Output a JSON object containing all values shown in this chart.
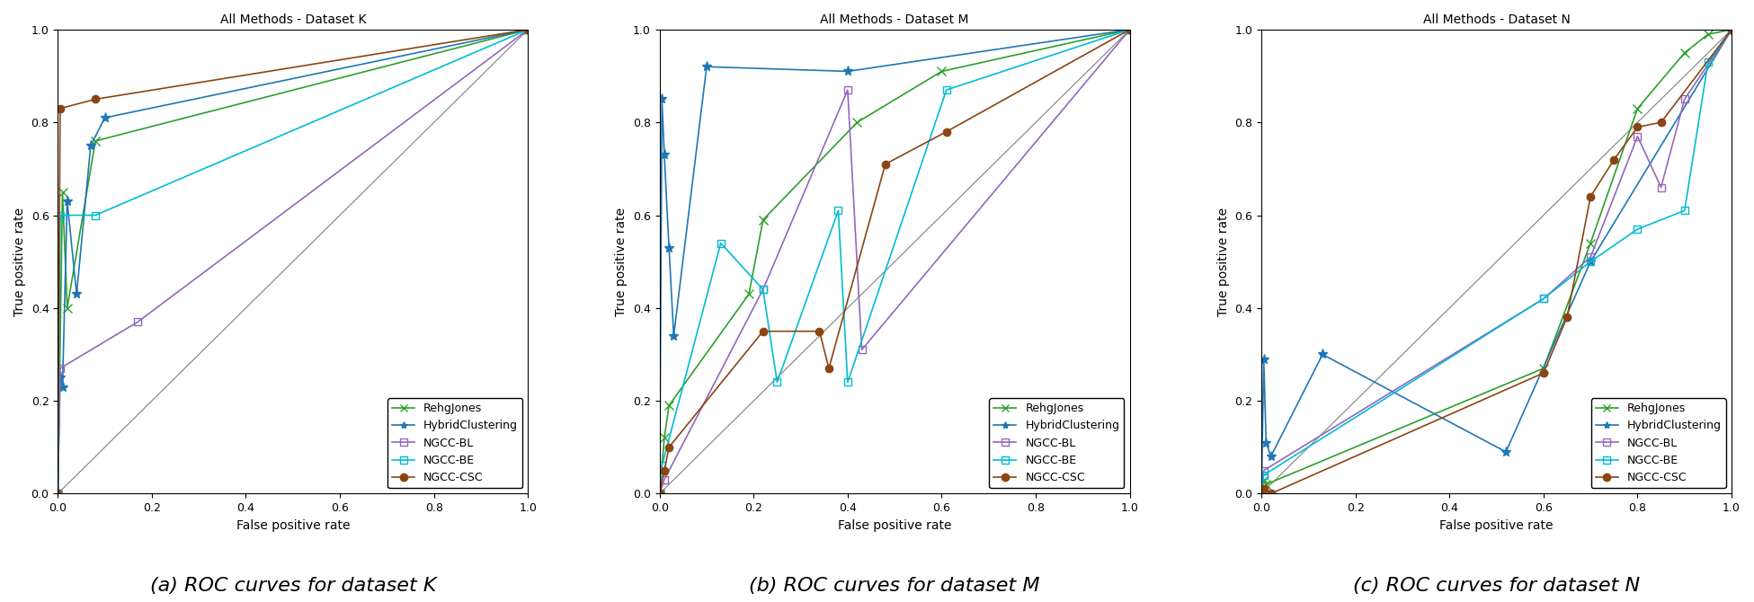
{
  "charts": [
    {
      "title": "All Methods - Dataset K",
      "xlabel": "False positive rate",
      "ylabel": "True positive rate",
      "caption": "(a) ROC curves for dataset K",
      "series": {
        "RehgJones": {
          "x": [
            0.0,
            0.01,
            0.02,
            0.08,
            1.0
          ],
          "y": [
            0.0,
            0.65,
            0.4,
            0.76,
            1.0
          ],
          "color": "#2ca02c",
          "marker": "x"
        },
        "HybridClustering": {
          "x": [
            0.0,
            0.005,
            0.01,
            0.02,
            0.04,
            0.07,
            0.1,
            1.0
          ],
          "y": [
            0.0,
            0.25,
            0.23,
            0.63,
            0.43,
            0.75,
            0.81,
            1.0
          ],
          "color": "#1f77b4",
          "marker": "*"
        },
        "NGCC-BL": {
          "x": [
            0.0,
            0.005,
            0.17,
            1.0
          ],
          "y": [
            0.0,
            0.27,
            0.37,
            1.0
          ],
          "color": "#9467bd",
          "marker": "s"
        },
        "NGCC-BE": {
          "x": [
            0.0,
            0.005,
            0.08,
            1.0
          ],
          "y": [
            0.0,
            0.6,
            0.6,
            1.0
          ],
          "color": "#00bcd4",
          "marker": "s"
        },
        "NGCC-CSC": {
          "x": [
            0.0,
            0.005,
            0.08,
            1.0
          ],
          "y": [
            0.0,
            0.83,
            0.85,
            1.0
          ],
          "color": "#8B4513",
          "marker": "o"
        }
      }
    },
    {
      "title": "All Methods - Dataset M",
      "xlabel": "False positive rate",
      "ylabel": "True positive rate",
      "caption": "(b) ROC curves for dataset M",
      "series": {
        "RehgJones": {
          "x": [
            0.0,
            0.01,
            0.02,
            0.19,
            0.22,
            0.42,
            0.6,
            1.0
          ],
          "y": [
            0.0,
            0.12,
            0.19,
            0.43,
            0.59,
            0.8,
            0.91,
            1.0
          ],
          "color": "#2ca02c",
          "marker": "x"
        },
        "HybridClustering": {
          "x": [
            0.0,
            0.005,
            0.01,
            0.02,
            0.03,
            0.1,
            0.4,
            1.0
          ],
          "y": [
            0.0,
            0.85,
            0.73,
            0.53,
            0.34,
            0.92,
            0.91,
            1.0
          ],
          "color": "#1f77b4",
          "marker": "*"
        },
        "NGCC-BL": {
          "x": [
            0.0,
            0.01,
            0.22,
            0.4,
            0.43,
            1.0
          ],
          "y": [
            0.0,
            0.03,
            0.44,
            0.87,
            0.31,
            1.0
          ],
          "color": "#9467bd",
          "marker": "s"
        },
        "NGCC-BE": {
          "x": [
            0.0,
            0.005,
            0.13,
            0.22,
            0.25,
            0.38,
            0.4,
            0.61,
            1.0
          ],
          "y": [
            0.0,
            0.06,
            0.54,
            0.44,
            0.24,
            0.61,
            0.24,
            0.87,
            1.0
          ],
          "color": "#00bcd4",
          "marker": "s"
        },
        "NGCC-CSC": {
          "x": [
            0.0,
            0.01,
            0.02,
            0.22,
            0.34,
            0.36,
            0.48,
            0.61,
            1.0
          ],
          "y": [
            0.0,
            0.05,
            0.1,
            0.35,
            0.35,
            0.27,
            0.71,
            0.78,
            1.0
          ],
          "color": "#8B4513",
          "marker": "o"
        }
      }
    },
    {
      "title": "All Methods - Dataset N",
      "xlabel": "False positive rate",
      "ylabel": "True positive rate",
      "caption": "(c) ROC curves for dataset N",
      "series": {
        "RehgJones": {
          "x": [
            0.0,
            0.005,
            0.01,
            0.6,
            0.7,
            0.8,
            0.9,
            0.95,
            1.0
          ],
          "y": [
            0.0,
            0.03,
            0.02,
            0.27,
            0.54,
            0.83,
            0.95,
            0.99,
            1.0
          ],
          "color": "#2ca02c",
          "marker": "x"
        },
        "HybridClustering": {
          "x": [
            0.0,
            0.005,
            0.01,
            0.02,
            0.13,
            0.52,
            0.7,
            1.0
          ],
          "y": [
            0.0,
            0.29,
            0.11,
            0.08,
            0.3,
            0.09,
            0.5,
            1.0
          ],
          "color": "#1f77b4",
          "marker": "*"
        },
        "NGCC-BL": {
          "x": [
            0.0,
            0.005,
            0.6,
            0.7,
            0.8,
            0.85,
            0.9,
            1.0
          ],
          "y": [
            0.0,
            0.05,
            0.42,
            0.51,
            0.77,
            0.66,
            0.85,
            1.0
          ],
          "color": "#9467bd",
          "marker": "s"
        },
        "NGCC-BE": {
          "x": [
            0.0,
            0.005,
            0.6,
            0.7,
            0.8,
            0.9,
            0.95,
            1.0
          ],
          "y": [
            0.0,
            0.04,
            0.42,
            0.5,
            0.57,
            0.61,
            0.93,
            1.0
          ],
          "color": "#00bcd4",
          "marker": "s"
        },
        "NGCC-CSC": {
          "x": [
            0.0,
            0.005,
            0.02,
            0.6,
            0.65,
            0.7,
            0.75,
            0.8,
            0.85,
            1.0
          ],
          "y": [
            0.0,
            0.01,
            0.0,
            0.26,
            0.38,
            0.64,
            0.72,
            0.79,
            0.8,
            1.0
          ],
          "color": "#8B4513",
          "marker": "o"
        }
      }
    }
  ],
  "legend_labels": [
    "RehgJones",
    "HybridClustering",
    "NGCC-BL",
    "NGCC-BE",
    "NGCC-CSC"
  ],
  "legend_colors": [
    "#2ca02c",
    "#1f77b4",
    "#9467bd",
    "#00bcd4",
    "#8B4513"
  ],
  "legend_markers": [
    "x",
    "*",
    "s",
    "s",
    "o"
  ],
  "background_color": "#ffffff",
  "caption_fontsize": 16,
  "axis_title_fontsize": 10,
  "tick_fontsize": 9,
  "label_fontsize": 10,
  "legend_fontsize": 9
}
